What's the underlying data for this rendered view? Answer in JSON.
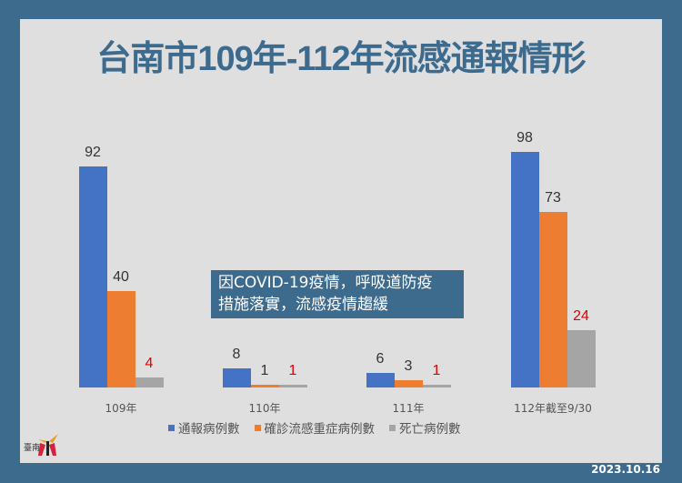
{
  "title": "台南市109年-112年流感通報情形",
  "annotation": {
    "line1": "因COVID-19疫情，呼吸道防疫",
    "line2": "措施落實，流感疫情趨緩"
  },
  "legend": [
    {
      "label": "通報病例數",
      "color": "#4472c4"
    },
    {
      "label": "確診流感重症病例數",
      "color": "#ed7d31"
    },
    {
      "label": "死亡病例數",
      "color": "#a5a5a5"
    }
  ],
  "date": "2023.10.16",
  "colors": {
    "frame": "#3d6b8e",
    "panel": "#e0dfe0",
    "death_label": "#e00000"
  },
  "chart_data": {
    "type": "bar",
    "title": "台南市109年-112年流感通報情形",
    "categories": [
      "109年",
      "110年",
      "111年",
      "112年截至9/30"
    ],
    "series": [
      {
        "name": "通報病例數",
        "values": [
          92,
          8,
          6,
          98
        ],
        "color": "#4472c4"
      },
      {
        "name": "確診流感重症病例數",
        "values": [
          40,
          1,
          3,
          73
        ],
        "color": "#ed7d31"
      },
      {
        "name": "死亡病例數",
        "values": [
          4,
          1,
          1,
          24
        ],
        "color": "#a5a5a5"
      }
    ],
    "xlabel": "",
    "ylabel": "",
    "ylim": [
      0,
      100
    ],
    "grid": false,
    "legend_position": "bottom",
    "data_labels": {
      "v0": [
        "92",
        "40",
        "4"
      ],
      "v1": [
        "8",
        "1",
        "1"
      ],
      "v2": [
        "6",
        "3",
        "1"
      ],
      "v3": [
        "98",
        "73",
        "24"
      ]
    }
  }
}
